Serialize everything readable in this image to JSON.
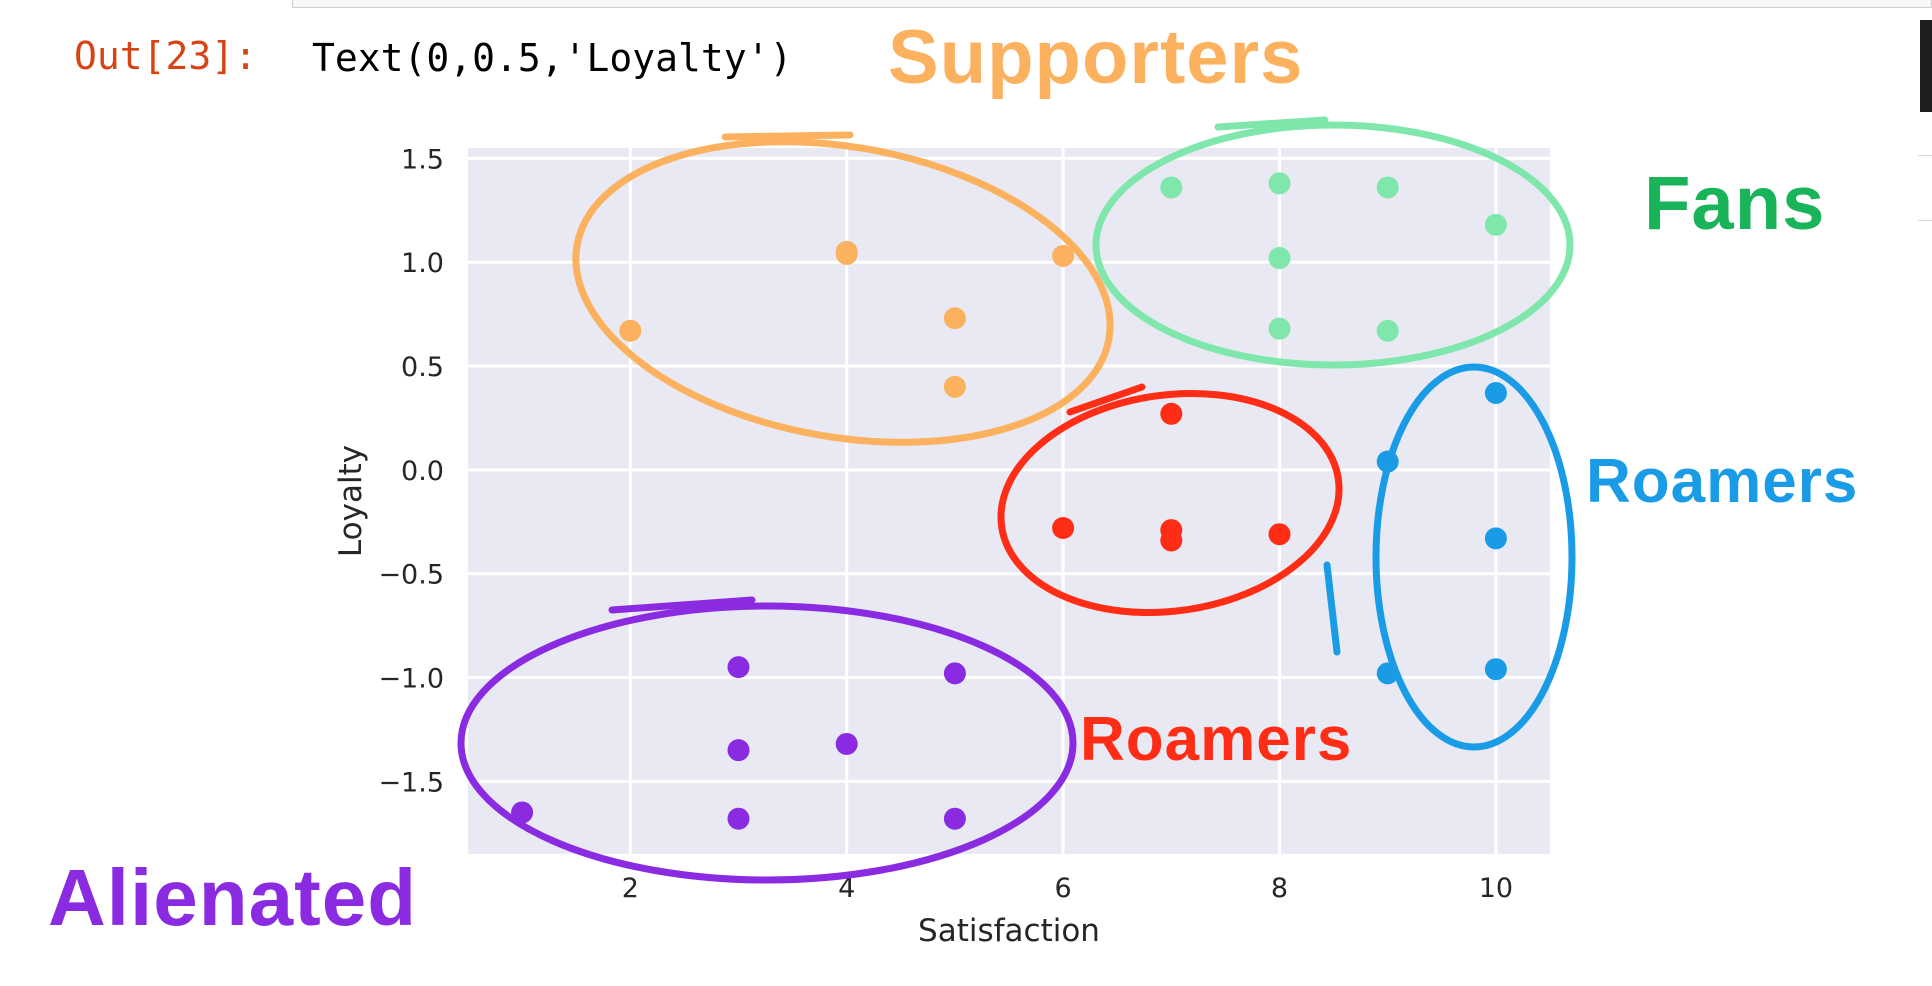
{
  "cell": {
    "prompt": "Out[23]:",
    "output": "Text(0,0.5,'Loyalty')"
  },
  "chart_data": {
    "type": "scatter",
    "xlabel": "Satisfaction",
    "ylabel": "Loyalty",
    "xlim": [
      0.5,
      10.5
    ],
    "ylim": [
      -1.85,
      1.55
    ],
    "grid": true,
    "xticks": [
      2,
      4,
      6,
      8,
      10
    ],
    "xtick_labels": [
      "2",
      "4",
      "6",
      "8",
      "10"
    ],
    "yticks": [
      1.5,
      1.0,
      0.5,
      0.0,
      -0.5,
      -1.0,
      -1.5
    ],
    "ytick_labels": [
      "1.5",
      "1.0",
      "0.5",
      "0.0",
      "−0.5",
      "−1.0",
      "−1.5"
    ],
    "background": "#e8e9f2",
    "series": [
      {
        "color": "#fbb15e",
        "points": [
          [
            4,
            1.05
          ],
          [
            4,
            1.04
          ],
          [
            2,
            0.67
          ],
          [
            5,
            0.73
          ],
          [
            5,
            0.4
          ],
          [
            6,
            1.03
          ]
        ]
      },
      {
        "color": "#7fe6ac",
        "points": [
          [
            7,
            1.36
          ],
          [
            8,
            1.38
          ],
          [
            9,
            1.36
          ],
          [
            10,
            1.18
          ],
          [
            8,
            1.02
          ],
          [
            8,
            0.68
          ],
          [
            9,
            0.67
          ]
        ]
      },
      {
        "color": "#ff2d16",
        "points": [
          [
            7,
            0.27
          ],
          [
            6,
            -0.28
          ],
          [
            7,
            -0.29
          ],
          [
            7,
            -0.34
          ],
          [
            8,
            -0.31
          ]
        ]
      },
      {
        "color": "#1a9be6",
        "points": [
          [
            10,
            0.37
          ],
          [
            9,
            0.04
          ],
          [
            10,
            -0.33
          ],
          [
            9,
            -0.98
          ],
          [
            10,
            -0.96
          ]
        ]
      },
      {
        "color": "#8a2be2",
        "points": [
          [
            3,
            -0.95
          ],
          [
            5,
            -0.98
          ],
          [
            3,
            -1.35
          ],
          [
            4,
            -1.32
          ],
          [
            1,
            -1.65
          ],
          [
            3,
            -1.68
          ],
          [
            5,
            -1.68
          ]
        ]
      }
    ]
  },
  "annotations": {
    "supporters": {
      "label": "Supporters",
      "color": "#fbb15e"
    },
    "fans": {
      "label": "Fans",
      "color": "#19b35a"
    },
    "roamers_blue": {
      "label": "Roamers",
      "color": "#1a9be6"
    },
    "roamers_red": {
      "label": "Roamers",
      "color": "#ff2d16"
    },
    "alienated": {
      "label": "Alienated",
      "color": "#8a2be2"
    }
  }
}
